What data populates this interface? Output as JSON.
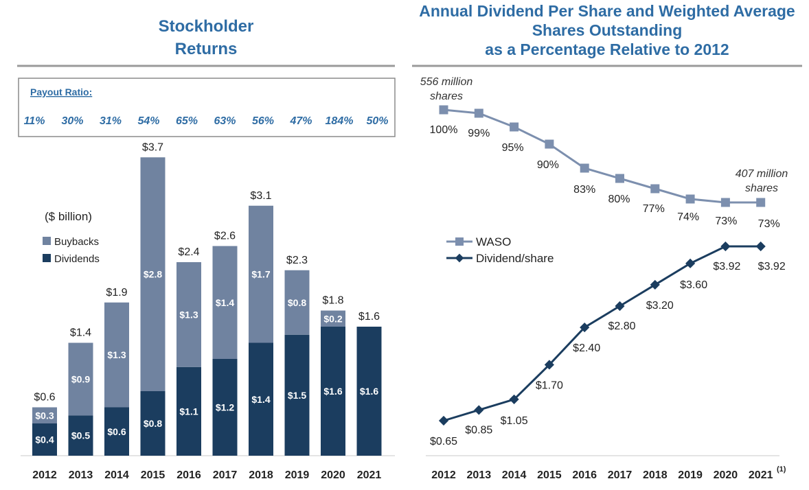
{
  "left_panel": {
    "title_line1": "Stockholder",
    "title_line2": "Returns",
    "payout_label": "Payout Ratio:",
    "payout_ratios": [
      "11%",
      "30%",
      "31%",
      "54%",
      "65%",
      "63%",
      "56%",
      "47%",
      "184%",
      "50%"
    ]
  },
  "right_panel": {
    "title_line1": "Annual Dividend Per Share and Weighted Average",
    "title_line2": "Shares Outstanding",
    "title_line3": "as a Percentage Relative to 2012",
    "start_annotation_line1": "556 million",
    "start_annotation_line2": "shares",
    "end_annotation_line1": "407 million",
    "end_annotation_line2": "shares",
    "footnote_marker": "(1)"
  },
  "colors": {
    "title": "#2e6ca4",
    "buybacks": "#7083a0",
    "dividends": "#1b3d5f",
    "waso_line": "#7c8fae",
    "dividend_line": "#1b3d5f",
    "divider": "#9a9a9a"
  },
  "chart_data": [
    {
      "type": "bar",
      "stacked": true,
      "title": "Stockholder Returns",
      "unit_label": "($ billion)",
      "categories": [
        "2012",
        "2013",
        "2014",
        "2015",
        "2016",
        "2017",
        "2018",
        "2019",
        "2020",
        "2021"
      ],
      "series": [
        {
          "name": "Dividends",
          "values": [
            0.4,
            0.5,
            0.6,
            0.8,
            1.1,
            1.2,
            1.4,
            1.5,
            1.6,
            1.6
          ],
          "labels": [
            "$0.4",
            "$0.5",
            "$0.6",
            "$0.8",
            "$1.1",
            "$1.2",
            "$1.4",
            "$1.5",
            "$1.6",
            "$1.6"
          ]
        },
        {
          "name": "Buybacks",
          "values": [
            0.3,
            0.9,
            1.3,
            2.8,
            1.3,
            1.4,
            1.7,
            0.8,
            0.2,
            0.0
          ],
          "labels": [
            "$0.3",
            "$0.9",
            "$1.3",
            "$2.8",
            "$1.3",
            "$1.4",
            "$1.7",
            "$0.8",
            "$0.2",
            ""
          ]
        }
      ],
      "totals": [
        0.6,
        1.4,
        1.9,
        3.7,
        2.4,
        2.6,
        3.1,
        2.3,
        1.8,
        1.6
      ],
      "total_labels": [
        "$0.6",
        "$1.4",
        "$1.9",
        "$3.7",
        "$2.4",
        "$2.6",
        "$3.1",
        "$2.3",
        "$1.8",
        "$1.6"
      ],
      "legend": [
        "Buybacks",
        "Dividends"
      ],
      "ylim": [
        0,
        4.0
      ]
    },
    {
      "type": "line",
      "title": "Annual Dividend Per Share and Weighted Average Shares Outstanding as a Percentage Relative to 2012",
      "x": [
        "2012",
        "2013",
        "2014",
        "2015",
        "2016",
        "2017",
        "2018",
        "2019",
        "2020",
        "2021"
      ],
      "series": [
        {
          "name": "WASO",
          "marker": "square",
          "values": [
            100,
            99,
            95,
            90,
            83,
            80,
            77,
            74,
            73,
            73
          ],
          "labels": [
            "100%",
            "99%",
            "95%",
            "90%",
            "83%",
            "80%",
            "77%",
            "74%",
            "73%",
            "73%"
          ],
          "ylim": [
            72,
            100
          ]
        },
        {
          "name": "Dividend/share",
          "marker": "diamond",
          "values": [
            0.65,
            0.85,
            1.05,
            1.7,
            2.4,
            2.8,
            3.2,
            3.6,
            3.92,
            3.92
          ],
          "labels": [
            "$0.65",
            "$0.85",
            "$1.05",
            "$1.70",
            "$2.40",
            "$2.80",
            "$3.20",
            "$3.60",
            "$3.92",
            "$3.92"
          ],
          "ylim": [
            0.65,
            3.92
          ]
        }
      ],
      "legend": [
        "WASO",
        "Dividend/share"
      ]
    }
  ]
}
